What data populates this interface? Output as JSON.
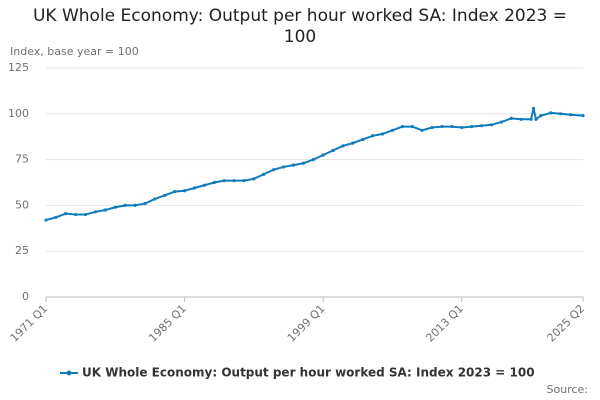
{
  "chart_data": {
    "type": "line",
    "title": "UK Whole Economy: Output per hour worked SA: Index 2023 = 100",
    "y_label": "Index, base year = 100",
    "source": "Source:",
    "x": [
      1971,
      1972,
      1973,
      1974,
      1975,
      1976,
      1977,
      1978,
      1979,
      1980,
      1981,
      1982,
      1983,
      1984,
      1985,
      1986,
      1987,
      1988,
      1989,
      1990,
      1991,
      1992,
      1993,
      1994,
      1995,
      1996,
      1997,
      1998,
      1999,
      2000,
      2001,
      2002,
      2003,
      2004,
      2005,
      2006,
      2007,
      2008,
      2009,
      2010,
      2011,
      2012,
      2013,
      2014,
      2015,
      2016,
      2017,
      2018,
      2019,
      2020,
      2020.25,
      2020.5,
      2021,
      2022,
      2023,
      2024,
      2025.25
    ],
    "series": [
      {
        "name": "UK Whole Economy: Output per hour worked SA: Index 2023 = 100",
        "color": "#0e7bbf",
        "values": [
          42,
          43.5,
          45.5,
          45,
          45,
          46.5,
          47.5,
          49,
          50,
          50,
          51,
          53.5,
          55.5,
          57.5,
          58,
          59.5,
          61,
          62.5,
          63.5,
          63.5,
          63.5,
          64.5,
          67,
          69.5,
          71,
          72,
          73,
          75,
          77.5,
          80,
          82.5,
          84,
          86,
          88,
          89,
          91,
          93,
          93,
          91,
          92.5,
          93,
          93,
          92.5,
          93,
          93.5,
          94,
          95.5,
          97.5,
          97,
          97,
          103,
          97,
          99,
          100.5,
          100,
          99.5,
          99
        ]
      }
    ],
    "xlim": [
      1971,
      2025.25
    ],
    "xticks": [
      {
        "value": 1971,
        "label": "1971 Q1"
      },
      {
        "value": 1985,
        "label": "1985 Q1"
      },
      {
        "value": 1999,
        "label": "1999 Q1"
      },
      {
        "value": 2013,
        "label": "2013 Q1"
      },
      {
        "value": 2025.25,
        "label": "2025 Q2"
      }
    ],
    "ylim": [
      0,
      125
    ],
    "yticks": [
      0,
      25,
      50,
      75,
      100,
      125
    ],
    "grid": true
  }
}
